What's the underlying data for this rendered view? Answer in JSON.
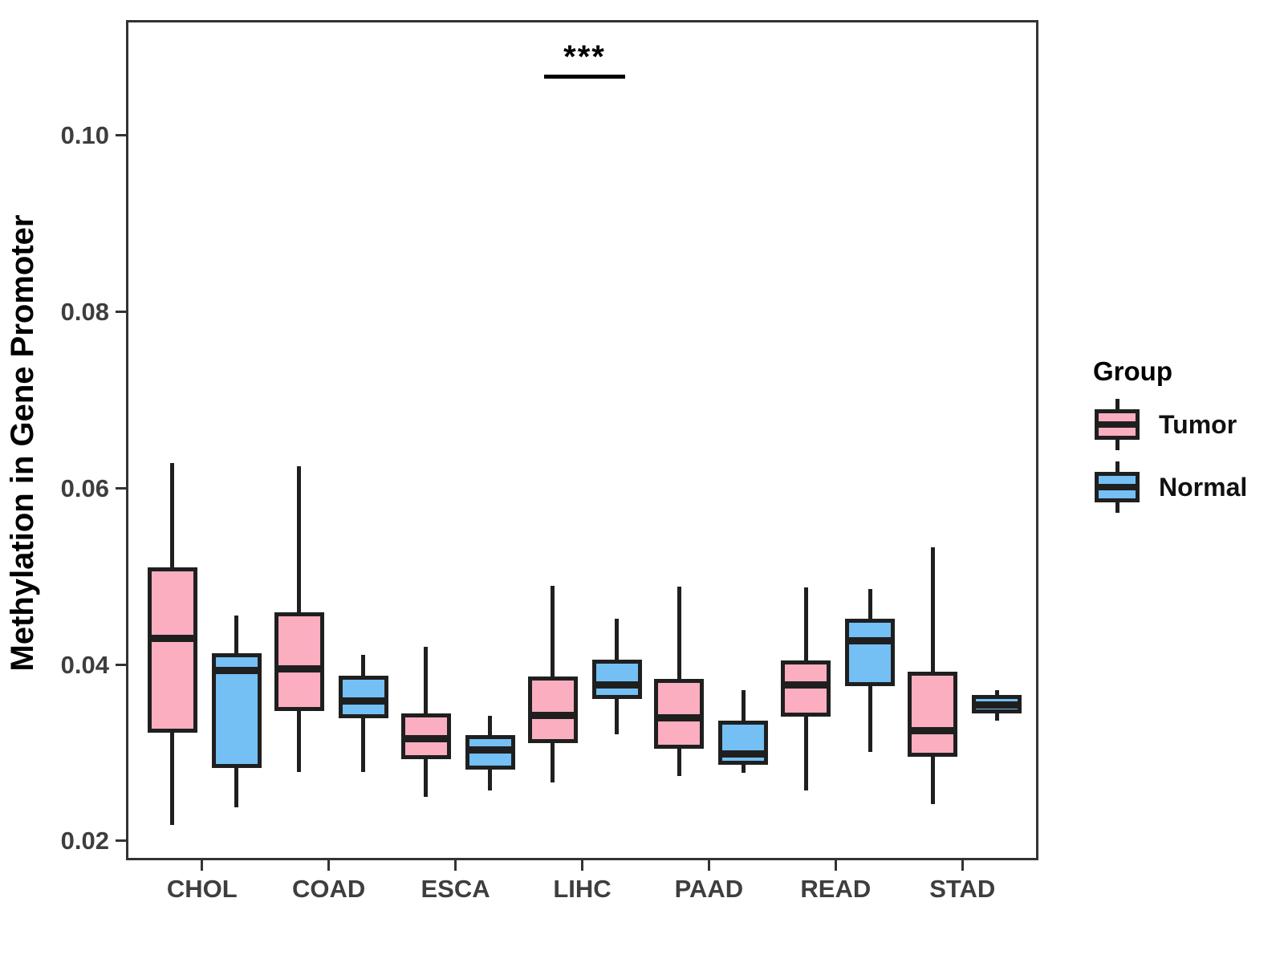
{
  "chart_data": {
    "type": "boxplot",
    "title": "",
    "xlabel": "",
    "ylabel": "Methylation in Gene Promoter",
    "categories": [
      "CHOL",
      "COAD",
      "ESCA",
      "LIHC",
      "PAAD",
      "READ",
      "STAD"
    ],
    "y_ticks": [
      0.02,
      0.04,
      0.06,
      0.08,
      0.1
    ],
    "y_tick_labels": [
      "0.02",
      "0.04",
      "0.06",
      "0.08",
      "0.10"
    ],
    "ylim": [
      0.0178,
      0.1131
    ],
    "grid": false,
    "legend_position": "right",
    "series": [
      {
        "name": "Tumor",
        "color": "#FBAEC0",
        "boxes": [
          {
            "category": "CHOL",
            "whisker_low": 0.0221,
            "q1": 0.0325,
            "median": 0.0432,
            "q3": 0.0513,
            "whisker_high": 0.0631
          },
          {
            "category": "COAD",
            "whisker_low": 0.0281,
            "q1": 0.035,
            "median": 0.0398,
            "q3": 0.0462,
            "whisker_high": 0.0628
          },
          {
            "category": "ESCA",
            "whisker_low": 0.0253,
            "q1": 0.0295,
            "median": 0.0319,
            "q3": 0.0347,
            "whisker_high": 0.0423
          },
          {
            "category": "LIHC",
            "whisker_low": 0.0269,
            "q1": 0.0314,
            "median": 0.0345,
            "q3": 0.0389,
            "whisker_high": 0.0492
          },
          {
            "category": "PAAD",
            "whisker_low": 0.0276,
            "q1": 0.0307,
            "median": 0.0342,
            "q3": 0.0386,
            "whisker_high": 0.0491
          },
          {
            "category": "READ",
            "whisker_low": 0.026,
            "q1": 0.0344,
            "median": 0.038,
            "q3": 0.0407,
            "whisker_high": 0.049
          },
          {
            "category": "STAD",
            "whisker_low": 0.0244,
            "q1": 0.0298,
            "median": 0.0328,
            "q3": 0.0395,
            "whisker_high": 0.0536
          }
        ]
      },
      {
        "name": "Normal",
        "color": "#74BFF4",
        "boxes": [
          {
            "category": "CHOL",
            "whisker_low": 0.0241,
            "q1": 0.0285,
            "median": 0.0396,
            "q3": 0.0416,
            "whisker_high": 0.0458
          },
          {
            "category": "COAD",
            "whisker_low": 0.0281,
            "q1": 0.0342,
            "median": 0.0361,
            "q3": 0.039,
            "whisker_high": 0.0414
          },
          {
            "category": "ESCA",
            "whisker_low": 0.026,
            "q1": 0.0284,
            "median": 0.0306,
            "q3": 0.0323,
            "whisker_high": 0.0345
          },
          {
            "category": "LIHC",
            "whisker_low": 0.0324,
            "q1": 0.0364,
            "median": 0.038,
            "q3": 0.0408,
            "whisker_high": 0.0455
          },
          {
            "category": "PAAD",
            "whisker_low": 0.028,
            "q1": 0.0289,
            "median": 0.0301,
            "q3": 0.0339,
            "whisker_high": 0.0374
          },
          {
            "category": "READ",
            "whisker_low": 0.0304,
            "q1": 0.0378,
            "median": 0.043,
            "q3": 0.0455,
            "whisker_high": 0.0488
          },
          {
            "category": "STAD",
            "whisker_low": 0.0339,
            "q1": 0.0347,
            "median": 0.0357,
            "q3": 0.0368,
            "whisker_high": 0.0374
          }
        ]
      }
    ],
    "annotation": {
      "text": "***",
      "category": "LIHC",
      "bar_y": 0.107,
      "text_y": 0.109
    },
    "legend": {
      "title": "Group",
      "entries": [
        {
          "label": "Tumor",
          "color": "#FBAEC0"
        },
        {
          "label": "Normal",
          "color": "#74BFF4"
        }
      ]
    }
  }
}
